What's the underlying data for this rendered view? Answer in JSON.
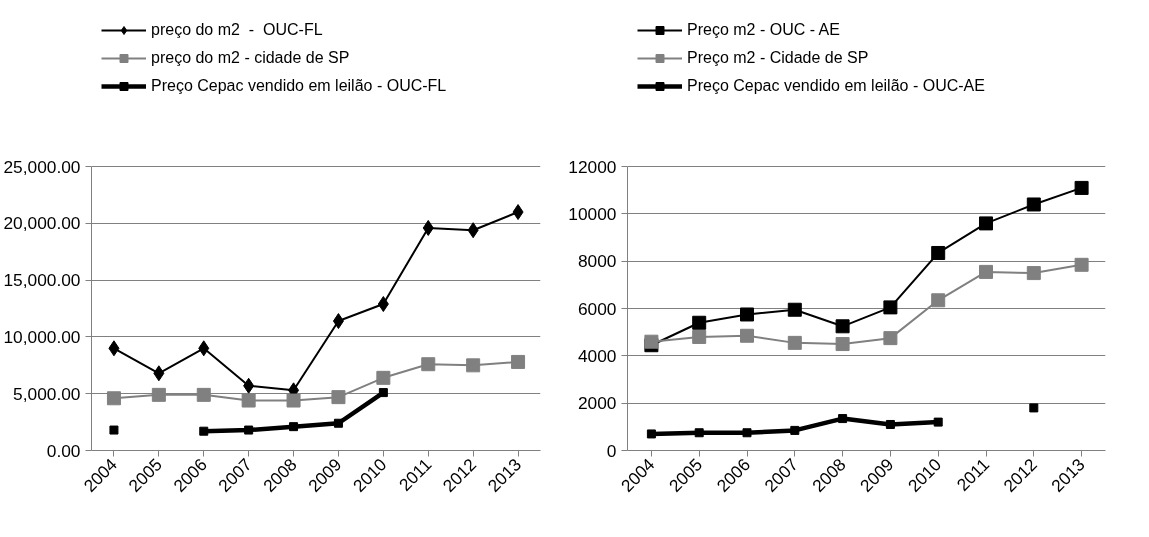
{
  "chart_data": [
    {
      "type": "line",
      "categories": [
        "2004",
        "2005",
        "2006",
        "2007",
        "2008",
        "2009",
        "2010",
        "2011",
        "2012",
        "2013"
      ],
      "ylim": [
        0,
        25000
      ],
      "yticks": [
        {
          "value": 0,
          "label": "0.00"
        },
        {
          "value": 5000,
          "label": "5,000.00"
        },
        {
          "value": 10000,
          "label": "10,000.00"
        },
        {
          "value": 15000,
          "label": "15,000.00"
        },
        {
          "value": 20000,
          "label": "20,000.00"
        },
        {
          "value": 25000,
          "label": "25,000.00"
        }
      ],
      "grid": "y",
      "legend": "top",
      "series": [
        {
          "name": "preço do m2  -  OUC-FL",
          "color": "#000000",
          "marker": "diamond",
          "values": [
            9000,
            6800,
            9000,
            5700,
            5300,
            11400,
            12900,
            19600,
            19400,
            21000
          ]
        },
        {
          "name": "preço do m2 - cidade de SP",
          "color": "#808080",
          "marker": "square",
          "values": [
            4600,
            4900,
            4900,
            4400,
            4400,
            4700,
            6400,
            7600,
            7500,
            7800
          ]
        },
        {
          "name": "Preço Cepac vendido em leilão - OUC-FL",
          "color": "#000000",
          "marker": "square",
          "values": [
            1800,
            null,
            1700,
            1800,
            2100,
            2400,
            5100,
            null,
            null,
            null
          ]
        }
      ]
    },
    {
      "type": "line",
      "categories": [
        "2004",
        "2005",
        "2006",
        "2007",
        "2008",
        "2009",
        "2010",
        "2011",
        "2012",
        "2013"
      ],
      "ylim": [
        0,
        12000
      ],
      "yticks": [
        0,
        2000,
        4000,
        6000,
        8000,
        10000,
        12000
      ],
      "grid": "y",
      "legend": "top",
      "series": [
        {
          "name": "Preço m2 - OUC - AE",
          "color": "#000000",
          "marker": "square",
          "values": [
            4450,
            5400,
            5750,
            5950,
            5250,
            6050,
            8350,
            9600,
            10400,
            11100
          ]
        },
        {
          "name": "Preço m2 - Cidade de SP",
          "color": "#808080",
          "marker": "square",
          "values": [
            4600,
            4800,
            4850,
            4550,
            4500,
            4750,
            6350,
            7550,
            7500,
            7850
          ]
        },
        {
          "name": "Preço Cepac vendido em leilão - OUC-AE",
          "color": "#000000",
          "marker": "square",
          "values": [
            700,
            750,
            750,
            850,
            1350,
            1100,
            1200,
            null,
            1800,
            null
          ]
        }
      ]
    }
  ]
}
